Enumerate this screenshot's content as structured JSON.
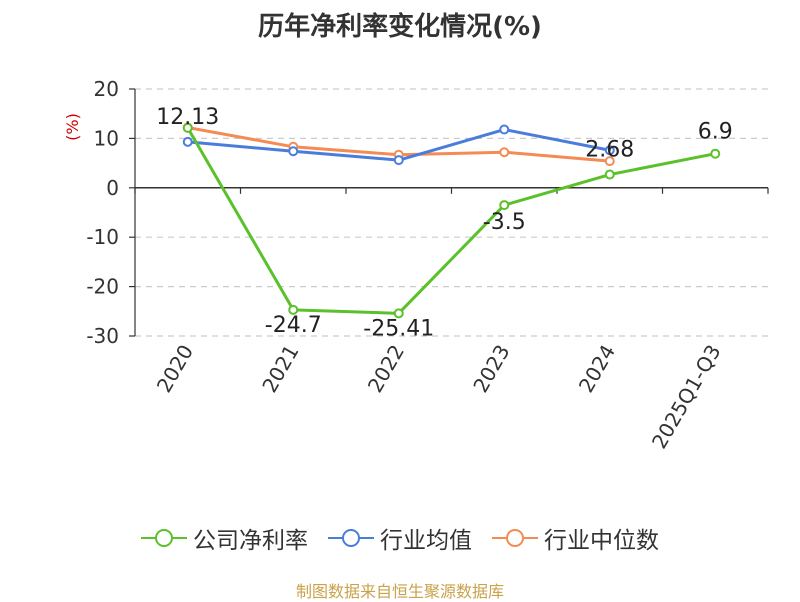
{
  "chart_data": {
    "type": "line",
    "title": "历年净利率变化情况(%)",
    "ylabel": "(%)",
    "categories": [
      "2020",
      "2021",
      "2022",
      "2023",
      "2024",
      "2025Q1-Q3"
    ],
    "y_ticks": [
      "20",
      "10",
      "0",
      "-10",
      "-20",
      "-30"
    ],
    "ylim": [
      -30,
      20
    ],
    "grid": true,
    "legend_position": "bottom",
    "series": [
      {
        "name": "公司净利率",
        "color": "#5ac12a",
        "values": [
          12.13,
          -24.7,
          -25.41,
          -3.5,
          2.68,
          6.9
        ],
        "labels": [
          "12.13",
          "-24.7",
          "-25.41",
          "-3.5",
          "2.68",
          "6.9"
        ]
      },
      {
        "name": "行业均值",
        "color": "#4a7ddb",
        "values": [
          9.3,
          7.4,
          5.6,
          11.8,
          7.6,
          null
        ]
      },
      {
        "name": "行业中位数",
        "color": "#f48b55",
        "values": [
          12.2,
          8.3,
          6.7,
          7.2,
          5.4,
          null
        ]
      }
    ],
    "source": "制图数据来自恒生聚源数据库"
  }
}
